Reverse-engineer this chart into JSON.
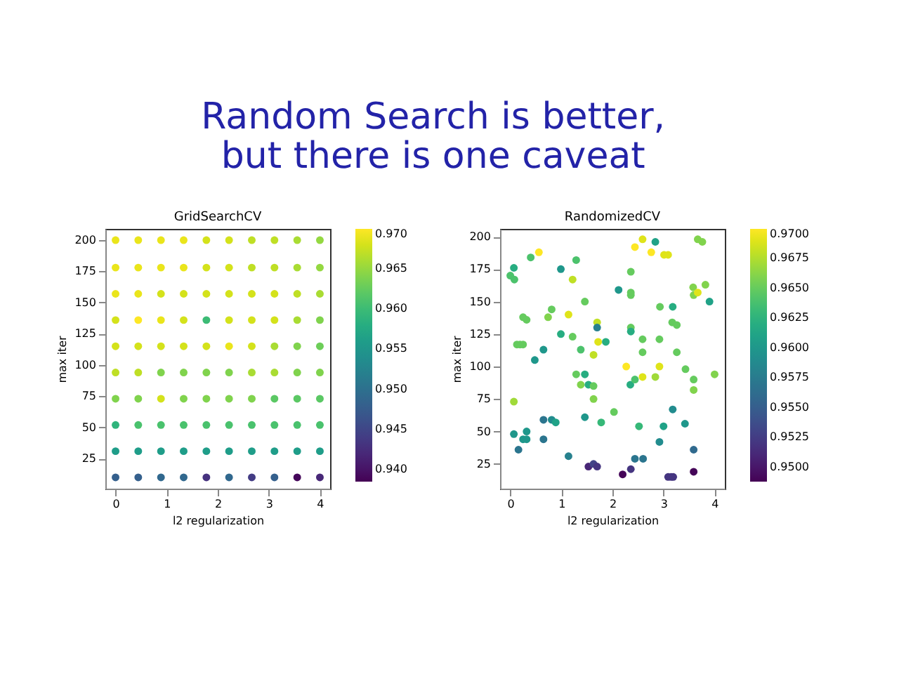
{
  "chart_data": [
    {
      "type": "scatter",
      "title": "GridSearchCV",
      "xlabel": "l2 regularization",
      "ylabel": "max iter",
      "annotations": [
        "Random Search is better,\nbut there is one caveat"
      ],
      "marker": "circle",
      "grid": false,
      "x": [
        0,
        0.444,
        0.889,
        1.333,
        1.778,
        2.222,
        2.667,
        3.111,
        3.556,
        4,
        0,
        0.444,
        0.889,
        1.333,
        1.778,
        2.222,
        2.667,
        3.111,
        3.556,
        4,
        0,
        0.444,
        0.889,
        1.333,
        1.778,
        2.222,
        2.667,
        3.111,
        3.556,
        4,
        0,
        0.444,
        0.889,
        1.333,
        1.778,
        2.222,
        2.667,
        3.111,
        3.556,
        4,
        0,
        0.444,
        0.889,
        1.333,
        1.778,
        2.222,
        2.667,
        3.111,
        3.556,
        4,
        0,
        0.444,
        0.889,
        1.333,
        1.778,
        2.222,
        2.667,
        3.111,
        3.556,
        4,
        0,
        0.444,
        0.889,
        1.333,
        1.778,
        2.222,
        2.667,
        3.111,
        3.556,
        4,
        0,
        0.444,
        0.889,
        1.333,
        1.778,
        2.222,
        2.667,
        3.111,
        3.556,
        4,
        0,
        0.444,
        0.889,
        1.333,
        1.778,
        2.222,
        2.667,
        3.111,
        3.556,
        4,
        0,
        0.444,
        0.889,
        1.333,
        1.778,
        2.222,
        2.667,
        3.111,
        3.556,
        4
      ],
      "values": [
        10,
        10,
        10,
        10,
        10,
        10,
        10,
        10,
        10,
        10,
        31,
        31,
        31,
        31,
        31,
        31,
        31,
        31,
        31,
        31,
        52,
        52,
        52,
        52,
        52,
        52,
        52,
        52,
        52,
        52,
        73,
        73,
        73,
        73,
        73,
        73,
        73,
        73,
        73,
        73,
        94,
        94,
        94,
        94,
        94,
        94,
        94,
        94,
        94,
        94,
        115,
        115,
        115,
        115,
        115,
        115,
        115,
        115,
        115,
        115,
        136,
        136,
        136,
        136,
        136,
        136,
        136,
        136,
        136,
        136,
        157,
        157,
        157,
        157,
        157,
        157,
        157,
        157,
        157,
        157,
        178,
        178,
        178,
        178,
        178,
        178,
        178,
        178,
        178,
        178,
        200,
        200,
        200,
        200,
        200,
        200,
        200,
        200,
        200,
        200
      ],
      "cvalues": [
        0.948,
        0.948,
        0.949,
        0.949,
        0.943,
        0.949,
        0.944,
        0.948,
        0.939,
        0.942,
        0.956,
        0.956,
        0.956,
        0.956,
        0.956,
        0.956,
        0.956,
        0.956,
        0.956,
        0.956,
        0.959,
        0.961,
        0.961,
        0.961,
        0.961,
        0.961,
        0.961,
        0.961,
        0.961,
        0.961,
        0.964,
        0.964,
        0.968,
        0.964,
        0.964,
        0.964,
        0.964,
        0.962,
        0.962,
        0.962,
        0.967,
        0.967,
        0.964,
        0.964,
        0.964,
        0.964,
        0.966,
        0.966,
        0.964,
        0.964,
        0.968,
        0.968,
        0.968,
        0.968,
        0.968,
        0.969,
        0.968,
        0.966,
        0.964,
        0.963,
        0.968,
        0.97,
        0.969,
        0.968,
        0.96,
        0.968,
        0.968,
        0.968,
        0.966,
        0.964,
        0.969,
        0.969,
        0.968,
        0.968,
        0.968,
        0.968,
        0.968,
        0.968,
        0.967,
        0.966,
        0.969,
        0.969,
        0.969,
        0.969,
        0.968,
        0.968,
        0.967,
        0.967,
        0.966,
        0.965,
        0.969,
        0.969,
        0.969,
        0.969,
        0.968,
        0.968,
        0.967,
        0.967,
        0.966,
        0.965
      ],
      "xlim": [
        -0.2,
        4.2
      ],
      "xticks": [
        0,
        1,
        2,
        3,
        4
      ],
      "ylim": [
        1,
        209
      ],
      "yticks": [
        25,
        50,
        75,
        100,
        125,
        150,
        175,
        200
      ],
      "clim": [
        0.9385,
        0.97
      ],
      "cticks": [
        {
          "value": 0.94,
          "label": "0.940"
        },
        {
          "value": 0.945,
          "label": "0.945"
        },
        {
          "value": 0.95,
          "label": "0.950"
        },
        {
          "value": 0.955,
          "label": "0.955"
        },
        {
          "value": 0.96,
          "label": "0.960"
        },
        {
          "value": 0.965,
          "label": "0.965"
        },
        {
          "value": 0.97,
          "label": "0.970"
        }
      ]
    },
    {
      "type": "scatter",
      "title": "RandomizedCV",
      "xlabel": "l2 regularization",
      "ylabel": "max iter",
      "marker": "circle",
      "grid": false,
      "x": [
        0.0,
        0.07,
        0.08,
        0.4,
        0.56,
        0.99,
        1.29,
        1.22,
        2.12,
        2.36,
        2.44,
        2.59,
        2.76,
        2.84,
        3.01,
        3.09,
        3.67,
        3.76,
        3.58,
        3.59,
        3.67,
        3.82,
        3.9,
        2.36,
        2.36,
        0.25,
        0.32,
        0.81,
        0.74,
        1.14,
        1.46,
        1.7,
        1.7,
        2.36,
        2.36,
        1.72,
        1.87,
        1.22,
        1.38,
        0.99,
        0.65,
        0.48,
        0.13,
        0.19,
        0.25,
        1.63,
        1.29,
        1.46,
        1.38,
        1.53,
        1.63,
        1.63,
        2.27,
        2.35,
        2.44,
        2.59,
        2.59,
        2.59,
        2.92,
        2.93,
        3.18,
        3.17,
        3.26,
        3.26,
        2.84,
        2.92,
        3.43,
        3.59,
        3.59,
        4.0,
        0.07,
        0.07,
        0.16,
        0.25,
        0.32,
        0.32,
        0.65,
        0.65,
        0.81,
        0.89,
        1.14,
        1.46,
        1.78,
        2.03,
        2.52,
        2.92,
        3.0,
        3.18,
        3.42,
        3.59,
        2.44,
        2.6,
        1.53,
        1.63,
        1.7,
        2.2,
        2.36,
        3.09,
        3.15,
        3.19,
        3.59
      ],
      "values": [
        170,
        176,
        167,
        184,
        188,
        175,
        182,
        167,
        159,
        173,
        192,
        198,
        188,
        196,
        186,
        186,
        198,
        196,
        161,
        155,
        157,
        163,
        150,
        157,
        155,
        138,
        136,
        144,
        138,
        140,
        150,
        134,
        130,
        130,
        127,
        119,
        119,
        123,
        113,
        125,
        113,
        105,
        117,
        117,
        117,
        109,
        94,
        94,
        86,
        86,
        85,
        75,
        100,
        86,
        90,
        92,
        111,
        121,
        121,
        146,
        146,
        134,
        132,
        111,
        92,
        100,
        98,
        90,
        82,
        94,
        73,
        48,
        36,
        44,
        44,
        50,
        59,
        44,
        59,
        57,
        31,
        61,
        57,
        65,
        54,
        42,
        54,
        67,
        56,
        36,
        29,
        29,
        23,
        25,
        23,
        17,
        21,
        15,
        15,
        15,
        19
      ],
      "cvalues": [
        0.964,
        0.962,
        0.964,
        0.964,
        0.97,
        0.96,
        0.964,
        0.968,
        0.96,
        0.965,
        0.97,
        0.969,
        0.97,
        0.961,
        0.969,
        0.969,
        0.966,
        0.966,
        0.966,
        0.966,
        0.969,
        0.966,
        0.961,
        0.965,
        0.965,
        0.965,
        0.965,
        0.965,
        0.966,
        0.969,
        0.965,
        0.968,
        0.958,
        0.965,
        0.962,
        0.969,
        0.962,
        0.965,
        0.964,
        0.962,
        0.96,
        0.96,
        0.965,
        0.965,
        0.965,
        0.968,
        0.965,
        0.962,
        0.966,
        0.962,
        0.965,
        0.966,
        0.97,
        0.962,
        0.964,
        0.969,
        0.965,
        0.965,
        0.965,
        0.965,
        0.962,
        0.965,
        0.965,
        0.965,
        0.967,
        0.969,
        0.965,
        0.965,
        0.966,
        0.966,
        0.967,
        0.96,
        0.957,
        0.96,
        0.96,
        0.96,
        0.957,
        0.957,
        0.959,
        0.961,
        0.958,
        0.96,
        0.963,
        0.965,
        0.963,
        0.959,
        0.961,
        0.959,
        0.96,
        0.956,
        0.957,
        0.957,
        0.951,
        0.953,
        0.952,
        0.949,
        0.952,
        0.952,
        0.952,
        0.952,
        0.949
      ],
      "xlim": [
        -0.2,
        4.2
      ],
      "xticks": [
        0,
        1,
        2,
        3,
        4
      ],
      "ylim": [
        6,
        206
      ],
      "yticks": [
        25,
        50,
        75,
        100,
        125,
        150,
        175,
        200
      ],
      "clim": [
        0.9488,
        0.97
      ],
      "cticks": [
        {
          "value": 0.95,
          "label": "0.9500"
        },
        {
          "value": 0.9525,
          "label": "0.9525"
        },
        {
          "value": 0.955,
          "label": "0.9550"
        },
        {
          "value": 0.9575,
          "label": "0.9575"
        },
        {
          "value": 0.96,
          "label": "0.9600"
        },
        {
          "value": 0.9625,
          "label": "0.9625"
        },
        {
          "value": 0.965,
          "label": "0.9650"
        },
        {
          "value": 0.9675,
          "label": "0.9675"
        },
        {
          "value": 0.97,
          "label": "0.9700"
        }
      ]
    }
  ]
}
